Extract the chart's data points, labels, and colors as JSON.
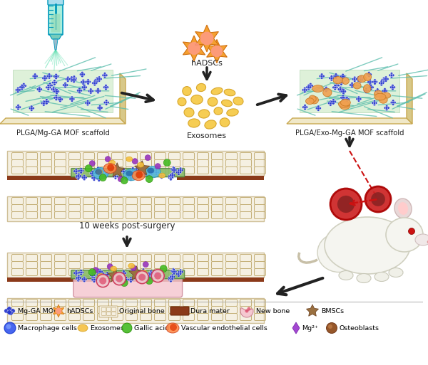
{
  "background_color": "#ffffff",
  "fig_width": 6.0,
  "fig_height": 5.13,
  "dpi": 100,
  "labels": {
    "scaffold1": "PLGA/Mg-GA MOF scaffold",
    "exosomes_label": "Exosomes",
    "hADSCs": "hADSCs",
    "scaffold2": "PLGA/Exo-Mg-GA MOF scaffold",
    "weeks": "10 weeks post-surgery"
  },
  "colors": {
    "scaffold_base": "#f0e8c8",
    "scaffold_base_edge": "#d4c090",
    "scaffold_fiber": "#66bbaa",
    "mof_blue": "#2233cc",
    "exosome_orange": "#f0a050",
    "exosome_yellow": "#f5c040",
    "bone_bg": "#f5f0e2",
    "bone_edge": "#d0c098",
    "dura_brown": "#8B3A1A",
    "scaffold_green": "#77aa55",
    "scaffold_green_edge": "#558844",
    "new_bone_pink": "#f5c8d0",
    "cell_blue": "#3355ee",
    "cell_teal": "#44aacc",
    "cell_orange": "#ff7733",
    "cell_green": "#44bb22",
    "cell_purple": "#9933cc",
    "cell_brown": "#9a6233",
    "arrow_color": "#222222",
    "arrow_red": "#cc1111",
    "hADSC_orange": "#f5a030",
    "wound_red": "#cc2222"
  }
}
